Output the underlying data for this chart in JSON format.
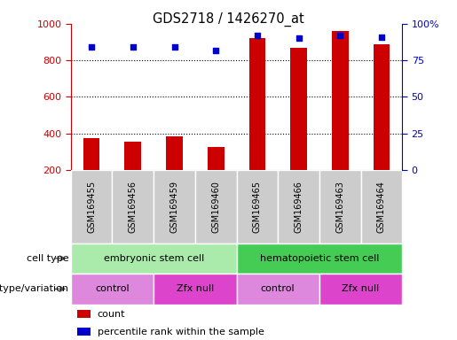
{
  "title": "GDS2718 / 1426270_at",
  "samples": [
    "GSM169455",
    "GSM169456",
    "GSM169459",
    "GSM169460",
    "GSM169465",
    "GSM169466",
    "GSM169463",
    "GSM169464"
  ],
  "counts": [
    375,
    355,
    385,
    325,
    920,
    870,
    960,
    890
  ],
  "percentile_ranks": [
    84,
    84,
    84,
    82,
    92,
    90,
    92,
    91
  ],
  "ylim_left": [
    200,
    1000
  ],
  "ylim_right": [
    0,
    100
  ],
  "yticks_left": [
    200,
    400,
    600,
    800,
    1000
  ],
  "yticks_right": [
    0,
    25,
    50,
    75,
    100
  ],
  "ytick_labels_right": [
    "0",
    "25",
    "50",
    "75",
    "100%"
  ],
  "bar_color": "#cc0000",
  "dot_color": "#0000cc",
  "cell_type_groups": [
    {
      "text": "embryonic stem cell",
      "cols": [
        0,
        1,
        2,
        3
      ],
      "color": "#aaeaaa"
    },
    {
      "text": "hematopoietic stem cell",
      "cols": [
        4,
        5,
        6,
        7
      ],
      "color": "#44cc55"
    }
  ],
  "genotype_groups": [
    {
      "text": "control",
      "cols": [
        0,
        1
      ],
      "color": "#dd88dd"
    },
    {
      "text": "Zfx null",
      "cols": [
        2,
        3
      ],
      "color": "#dd44cc"
    },
    {
      "text": "control",
      "cols": [
        4,
        5
      ],
      "color": "#dd88dd"
    },
    {
      "text": "Zfx null",
      "cols": [
        6,
        7
      ],
      "color": "#dd44cc"
    }
  ],
  "legend_items": [
    {
      "color": "#cc0000",
      "label": "count"
    },
    {
      "color": "#0000cc",
      "label": "percentile rank within the sample"
    }
  ],
  "row_labels": [
    "cell type",
    "genotype/variation"
  ],
  "background_color": "#ffffff",
  "tick_color_left": "#cc0000",
  "tick_color_right": "#0000cc",
  "sample_bg_color": "#cccccc",
  "sample_grid_color": "#aaaaaa"
}
